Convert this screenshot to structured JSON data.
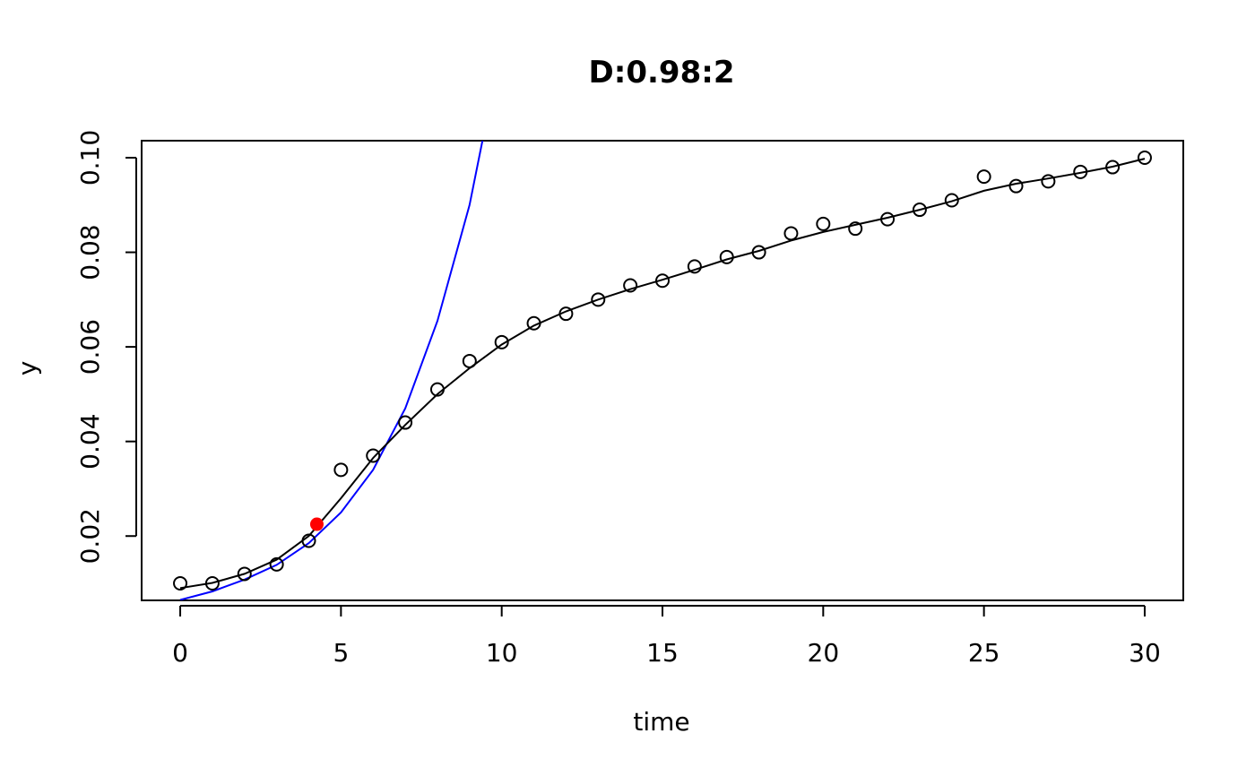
{
  "chart_data": {
    "type": "scatter",
    "title": "D:0.98:2",
    "xlabel": "time",
    "ylabel": "y",
    "xlim": [
      -1.2,
      31.2
    ],
    "ylim": [
      0.0064,
      0.1036
    ],
    "x_ticks": [
      0,
      5,
      10,
      15,
      20,
      25,
      30
    ],
    "x_tick_labels": [
      "0",
      "5",
      "10",
      "15",
      "20",
      "25",
      "30"
    ],
    "y_ticks": [
      0.02,
      0.04,
      0.06,
      0.08,
      0.1
    ],
    "y_tick_labels": [
      "0.02",
      "0.04",
      "0.06",
      "0.08",
      "0.10"
    ],
    "grid": false,
    "points": {
      "x": [
        0,
        1,
        2,
        3,
        4,
        5,
        6,
        7,
        8,
        9,
        10,
        11,
        12,
        13,
        14,
        15,
        16,
        17,
        18,
        19,
        20,
        21,
        22,
        23,
        24,
        25,
        26,
        27,
        28,
        29,
        30
      ],
      "y": [
        0.01,
        0.01,
        0.012,
        0.014,
        0.019,
        0.034,
        0.037,
        0.044,
        0.051,
        0.057,
        0.061,
        0.065,
        0.067,
        0.07,
        0.073,
        0.074,
        0.077,
        0.079,
        0.08,
        0.084,
        0.086,
        0.085,
        0.087,
        0.089,
        0.091,
        0.096,
        0.094,
        0.095,
        0.097,
        0.098,
        0.1
      ],
      "color": "#000000"
    },
    "smooth_fit": {
      "x": [
        0,
        1,
        2,
        3,
        4,
        5,
        6,
        7,
        8,
        9,
        10,
        11,
        12,
        13,
        14,
        15,
        16,
        17,
        18,
        19,
        20,
        21,
        22,
        23,
        24,
        25,
        26,
        27,
        28,
        29,
        30
      ],
      "y": [
        0.009,
        0.0101,
        0.012,
        0.015,
        0.02,
        0.028,
        0.0365,
        0.0435,
        0.05,
        0.0555,
        0.0605,
        0.0645,
        0.0675,
        0.07,
        0.0722,
        0.0742,
        0.0763,
        0.0785,
        0.0803,
        0.0825,
        0.0843,
        0.0858,
        0.0873,
        0.089,
        0.0908,
        0.093,
        0.0945,
        0.0956,
        0.0968,
        0.0981,
        0.0998
      ],
      "color": "#000000"
    },
    "exp_fit": {
      "x": [
        0,
        1,
        2,
        3,
        4,
        5,
        6,
        7,
        8,
        9,
        9.4
      ],
      "y": [
        0.0065,
        0.0083,
        0.0108,
        0.0139,
        0.0185,
        0.025,
        0.034,
        0.047,
        0.0655,
        0.09,
        0.1036
      ],
      "color": "#0000ff"
    },
    "highlight_point": {
      "x": 4.25,
      "y": 0.0225,
      "color": "#ff0000"
    }
  }
}
